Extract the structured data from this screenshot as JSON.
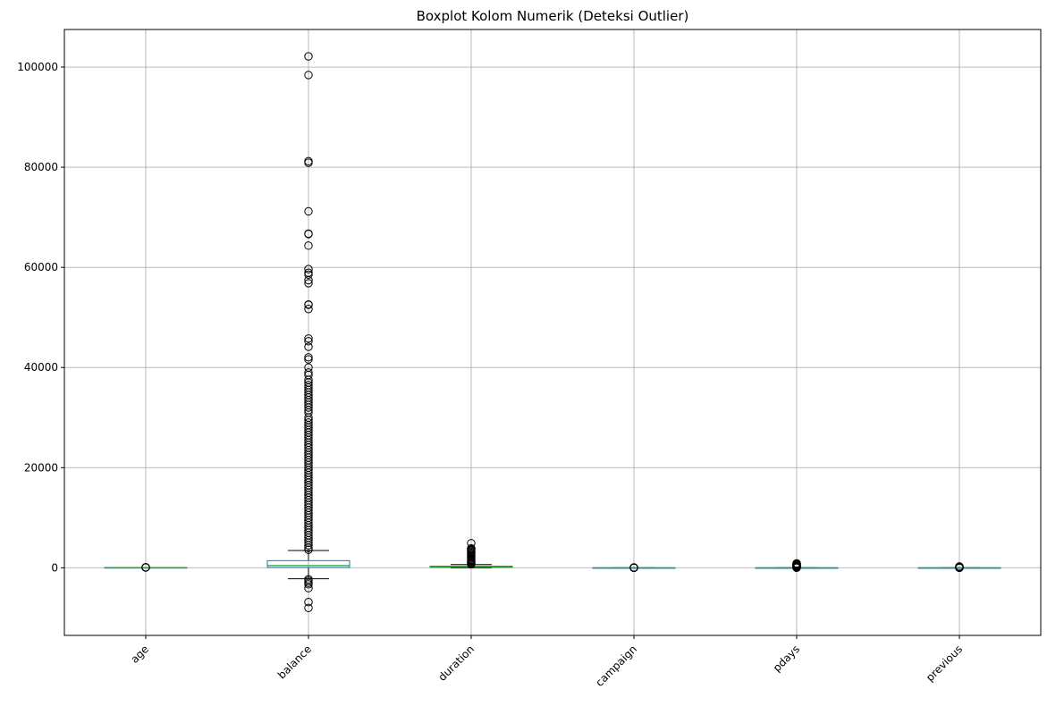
{
  "chart_data": {
    "type": "boxplot",
    "title": "Boxplot Kolom Numerik (Deteksi Outlier)",
    "xlabel": "",
    "ylabel": "",
    "ylim": [
      -13500,
      107500
    ],
    "yticks": [
      0,
      20000,
      40000,
      60000,
      80000,
      100000
    ],
    "ytick_labels": [
      "0",
      "20000",
      "40000",
      "60000",
      "80000",
      "100000"
    ],
    "grid": true,
    "categories": [
      "age",
      "balance",
      "duration",
      "campaign",
      "pdays",
      "previous"
    ],
    "boxes": [
      {
        "name": "age",
        "whislo": 18,
        "q1": 33,
        "med": 39,
        "q3": 48,
        "whishi": 70,
        "fliers": [
          71,
          75,
          80,
          85,
          90,
          95
        ]
      },
      {
        "name": "balance",
        "whislo": -2200,
        "q1": 72,
        "med": 448,
        "q3": 1428,
        "whishi": 3460,
        "fliers": [
          102127,
          98417,
          81204,
          80900,
          71188,
          66721,
          66653,
          64343,
          59649,
          58932,
          58544,
          57435,
          56831,
          52587,
          52527,
          51683,
          45789,
          45248,
          44134,
          42045,
          41630,
          40000,
          39000,
          38500,
          37500,
          37000,
          36500,
          36000,
          35500,
          35000,
          34500,
          34000,
          33500,
          33000,
          32500,
          32000,
          31500,
          31000,
          30000,
          29500,
          29000,
          28500,
          28000,
          27500,
          27000,
          26500,
          26000,
          25500,
          25000,
          24500,
          24000,
          23500,
          23000,
          22500,
          22000,
          21500,
          21000,
          20500,
          20000,
          19500,
          19000,
          18500,
          18000,
          17500,
          17000,
          16500,
          16000,
          15500,
          15000,
          14500,
          14000,
          13500,
          13000,
          12500,
          12000,
          11500,
          11000,
          10500,
          10000,
          9500,
          9000,
          8500,
          8000,
          7500,
          7000,
          6500,
          6000,
          5500,
          5000,
          4500,
          4000,
          3600,
          -2300,
          -2600,
          -3000,
          -3300,
          -4057,
          -6847,
          -8019
        ]
      },
      {
        "name": "duration",
        "whislo": 0,
        "q1": 103,
        "med": 180,
        "q3": 319,
        "whishi": 643,
        "fliers": [
          4918,
          3881,
          3785,
          3600,
          3400,
          3200,
          3000,
          2800,
          2600,
          2400,
          2200,
          2000,
          1800,
          1600,
          1400,
          1200,
          1000,
          900,
          800,
          700
        ]
      },
      {
        "name": "campaign",
        "whislo": 1,
        "q1": 1,
        "med": 2,
        "q3": 3,
        "whishi": 6,
        "fliers": [
          7,
          10,
          15,
          20,
          30,
          40,
          50,
          63
        ]
      },
      {
        "name": "pdays",
        "whislo": -1,
        "q1": -1,
        "med": -1,
        "q3": -1,
        "whishi": -1,
        "fliers": [
          1,
          50,
          100,
          150,
          200,
          250,
          300,
          350,
          400,
          450,
          500,
          550,
          600,
          650,
          700,
          750,
          800,
          850,
          871
        ]
      },
      {
        "name": "previous",
        "whislo": 0,
        "q1": 0,
        "med": 0,
        "q3": 0,
        "whishi": 0,
        "fliers": [
          1,
          5,
          10,
          20,
          30,
          40,
          58,
          100,
          150,
          200,
          275
        ]
      }
    ]
  }
}
